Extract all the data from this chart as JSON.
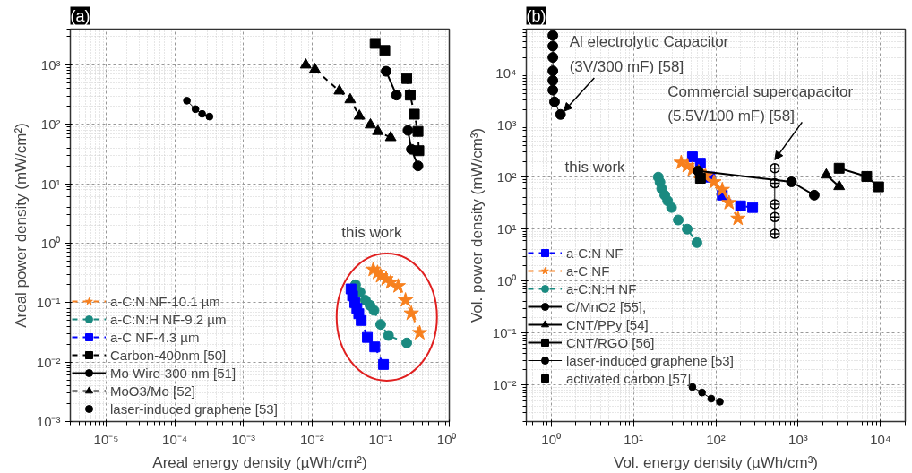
{
  "chart_data": [
    {
      "type": "line",
      "title": "(a)",
      "xlabel": "Areal energy density (µWh/cm²)",
      "ylabel": "Areal power density (mW/cm²)",
      "log": "xy",
      "grid": true,
      "legend": "bottom left",
      "xlim": [
        3e-06,
        1
      ],
      "ylim": [
        0.001,
        4000
      ],
      "xticks": [
        {
          "value": 1e-05,
          "label": "10⁻⁵"
        },
        {
          "value": 0.0001,
          "label": "10⁻⁴"
        },
        {
          "value": 0.001,
          "label": "10⁻³"
        },
        {
          "value": 0.01,
          "label": "10⁻²"
        },
        {
          "value": 0.1,
          "label": "10⁻¹"
        },
        {
          "value": 1,
          "label": "10⁰"
        }
      ],
      "yticks": [
        {
          "value": 0.001,
          "label": "10⁻³"
        },
        {
          "value": 0.01,
          "label": "10⁻²"
        },
        {
          "value": 0.1,
          "label": "10⁻¹"
        },
        {
          "value": 1,
          "label": "10⁰"
        },
        {
          "value": 10,
          "label": "10¹"
        },
        {
          "value": 100,
          "label": "10²"
        },
        {
          "value": 1000,
          "label": "10³"
        }
      ],
      "annotations": [
        "this work"
      ],
      "series": [
        {
          "name": "a-C:N NF-10.1 µm",
          "color": "#f7801e",
          "marker": "star",
          "line_style": "dashed",
          "x": [
            0.078,
            0.09,
            0.1,
            0.12,
            0.14,
            0.18,
            0.23,
            0.28,
            0.37
          ],
          "values": [
            0.36,
            0.32,
            0.28,
            0.25,
            0.22,
            0.19,
            0.11,
            0.066,
            0.031
          ]
        },
        {
          "name": "a-C:N:H NF-9.2 µm",
          "color": "#1a8a80",
          "marker": "circle",
          "line_style": "dashed",
          "x": [
            0.043,
            0.05,
            0.06,
            0.07,
            0.08,
            0.1,
            0.13,
            0.24
          ],
          "values": [
            0.2,
            0.15,
            0.11,
            0.09,
            0.074,
            0.043,
            0.028,
            0.021
          ]
        },
        {
          "name": "a-C NF-4.3 µm",
          "color": "#0000ff",
          "marker": "square",
          "line_style": "dashed",
          "x": [
            0.037,
            0.039,
            0.042,
            0.045,
            0.048,
            0.052,
            0.064,
            0.082,
            0.11
          ],
          "values": [
            0.17,
            0.13,
            0.1,
            0.08,
            0.065,
            0.05,
            0.026,
            0.018,
            0.0091
          ]
        },
        {
          "name": "Carbon-400nm [50]",
          "color": "#000000",
          "marker": "square",
          "line_style": "dashed",
          "x": [
            0.083,
            0.115,
            null,
            0.24,
            0.27,
            0.31,
            0.35,
            0.36
          ],
          "values": [
            2300,
            1750,
            null,
            590,
            310,
            148,
            76,
            36
          ]
        },
        {
          "name": "Mo Wire-300 nm [51]",
          "color": "#000000",
          "marker": "circle",
          "line_style": "solid",
          "x": [
            0.12,
            0.17,
            null,
            0.25,
            0.28,
            0.35
          ],
          "values": [
            780,
            310,
            null,
            79,
            38,
            20
          ]
        },
        {
          "name": "MoO3/Mo [52]",
          "color": "#000000",
          "marker": "triangle",
          "line_style": "dashed",
          "x": [
            0.0081,
            0.011,
            0.025,
            0.036,
            0.049,
            0.071,
            0.091,
            0.14
          ],
          "values": [
            1000,
            840,
            365,
            260,
            138,
            98,
            76,
            60
          ]
        },
        {
          "name": "laser-induced graphene [53]",
          "color": "#000000",
          "marker": "circle",
          "line_style": "solid",
          "x": [
            0.00015,
            0.0002,
            0.00025,
            0.00032
          ],
          "values": [
            250,
            180,
            150,
            135
          ]
        }
      ]
    },
    {
      "type": "line",
      "title": "(b)",
      "xlabel": "Vol. energy density (µWh/cm³)",
      "ylabel": "Vol. power density (mW/cm³)",
      "log": "xy",
      "grid": true,
      "legend": "bottom left",
      "xlim": [
        0.5,
        20000
      ],
      "ylim": [
        0.002,
        70000
      ],
      "xticks": [
        {
          "value": 1,
          "label": "10⁰"
        },
        {
          "value": 10,
          "label": "10¹"
        },
        {
          "value": 100,
          "label": "10²"
        },
        {
          "value": 1000,
          "label": "10³"
        },
        {
          "value": 10000,
          "label": "10⁴"
        }
      ],
      "yticks": [
        {
          "value": 0.01,
          "label": "10⁻²"
        },
        {
          "value": 0.1,
          "label": "10⁻¹"
        },
        {
          "value": 1,
          "label": "10⁰"
        },
        {
          "value": 10,
          "label": "10¹"
        },
        {
          "value": 100,
          "label": "10²"
        },
        {
          "value": 1000,
          "label": "10³"
        },
        {
          "value": 10000,
          "label": "10⁴"
        }
      ],
      "annotations": [
        "Al electrolytic Capacitor",
        {
          "text": "(3V/300 mF) [58]",
          "x": 1.3,
          "y": 1600
        },
        "Commercial supercapacitor",
        {
          "text": "(5.5V/100 mF) [58]",
          "x": 520,
          "y": 148
        },
        "this work"
      ],
      "series": [
        {
          "color": "#000000",
          "marker": "circle",
          "line_style": "solid",
          "x": [
            1.05,
            1.05,
            1.05,
            1.05,
            1.05,
            1.05,
            1.1,
            1.3
          ],
          "values": [
            53000,
            33000,
            20000,
            11000,
            7200,
            4700,
            2800,
            1600
          ]
        },
        {
          "color": "#000000",
          "marker": "circle_cross",
          "line_style": "solid",
          "x": [
            520,
            520,
            520,
            520,
            520
          ],
          "values": [
            148,
            76,
            30,
            17,
            8.1
          ]
        },
        {
          "name": "a-C:N NF",
          "color": "#0000ff",
          "marker": "square",
          "line_style": "dashed",
          "x": [
            52,
            65,
            85,
            120,
            200,
            280
          ],
          "values": [
            245,
            185,
            100,
            45,
            28,
            26
          ]
        },
        {
          "name": "a-C NF",
          "color": "#f7801e",
          "marker": "star",
          "line_style": "dashed",
          "x": [
            38,
            45,
            52,
            62,
            75,
            95,
            120,
            145,
            186
          ],
          "values": [
            190,
            165,
            140,
            125,
            105,
            80,
            57,
            32,
            16
          ]
        },
        {
          "name": "a-C:N:H NF",
          "color": "#1a8a80",
          "marker": "circle",
          "line_style": "dashed",
          "x": [
            20,
            21,
            22,
            24,
            26,
            29,
            35,
            45,
            59
          ],
          "values": [
            100,
            80,
            60,
            45,
            35,
            26,
            15,
            10,
            5.5
          ]
        },
        {
          "name": "C/MnO2 [55],",
          "color": "#000000",
          "marker": "circle",
          "line_style": "solid",
          "x": [
            61,
            830,
            1570
          ],
          "values": [
            132,
            81,
            45
          ]
        },
        {
          "name": "CNT/PPy [54]",
          "color": "#000000",
          "marker": "triangle",
          "line_style": "solid",
          "x": [
            2200,
            3150
          ],
          "values": [
            110,
            66
          ]
        },
        {
          "name": "CNT/RGO [56]",
          "color": "#000000",
          "marker": "square",
          "line_style": "solid",
          "x": [
            3150,
            6800,
            9500
          ],
          "values": [
            148,
            103,
            65
          ]
        },
        {
          "name": "laser-induced graphene [53]",
          "color": "#000000",
          "marker": "circle",
          "line_style": "solid",
          "x": [
            52,
            68,
            88,
            112
          ],
          "values": [
            0.0092,
            0.0072,
            0.0055,
            0.0048
          ]
        },
        {
          "name": "activated carbon [57]",
          "color": "#000000",
          "marker": "square",
          "x": [
            65
          ],
          "values": [
            95
          ]
        }
      ]
    }
  ]
}
